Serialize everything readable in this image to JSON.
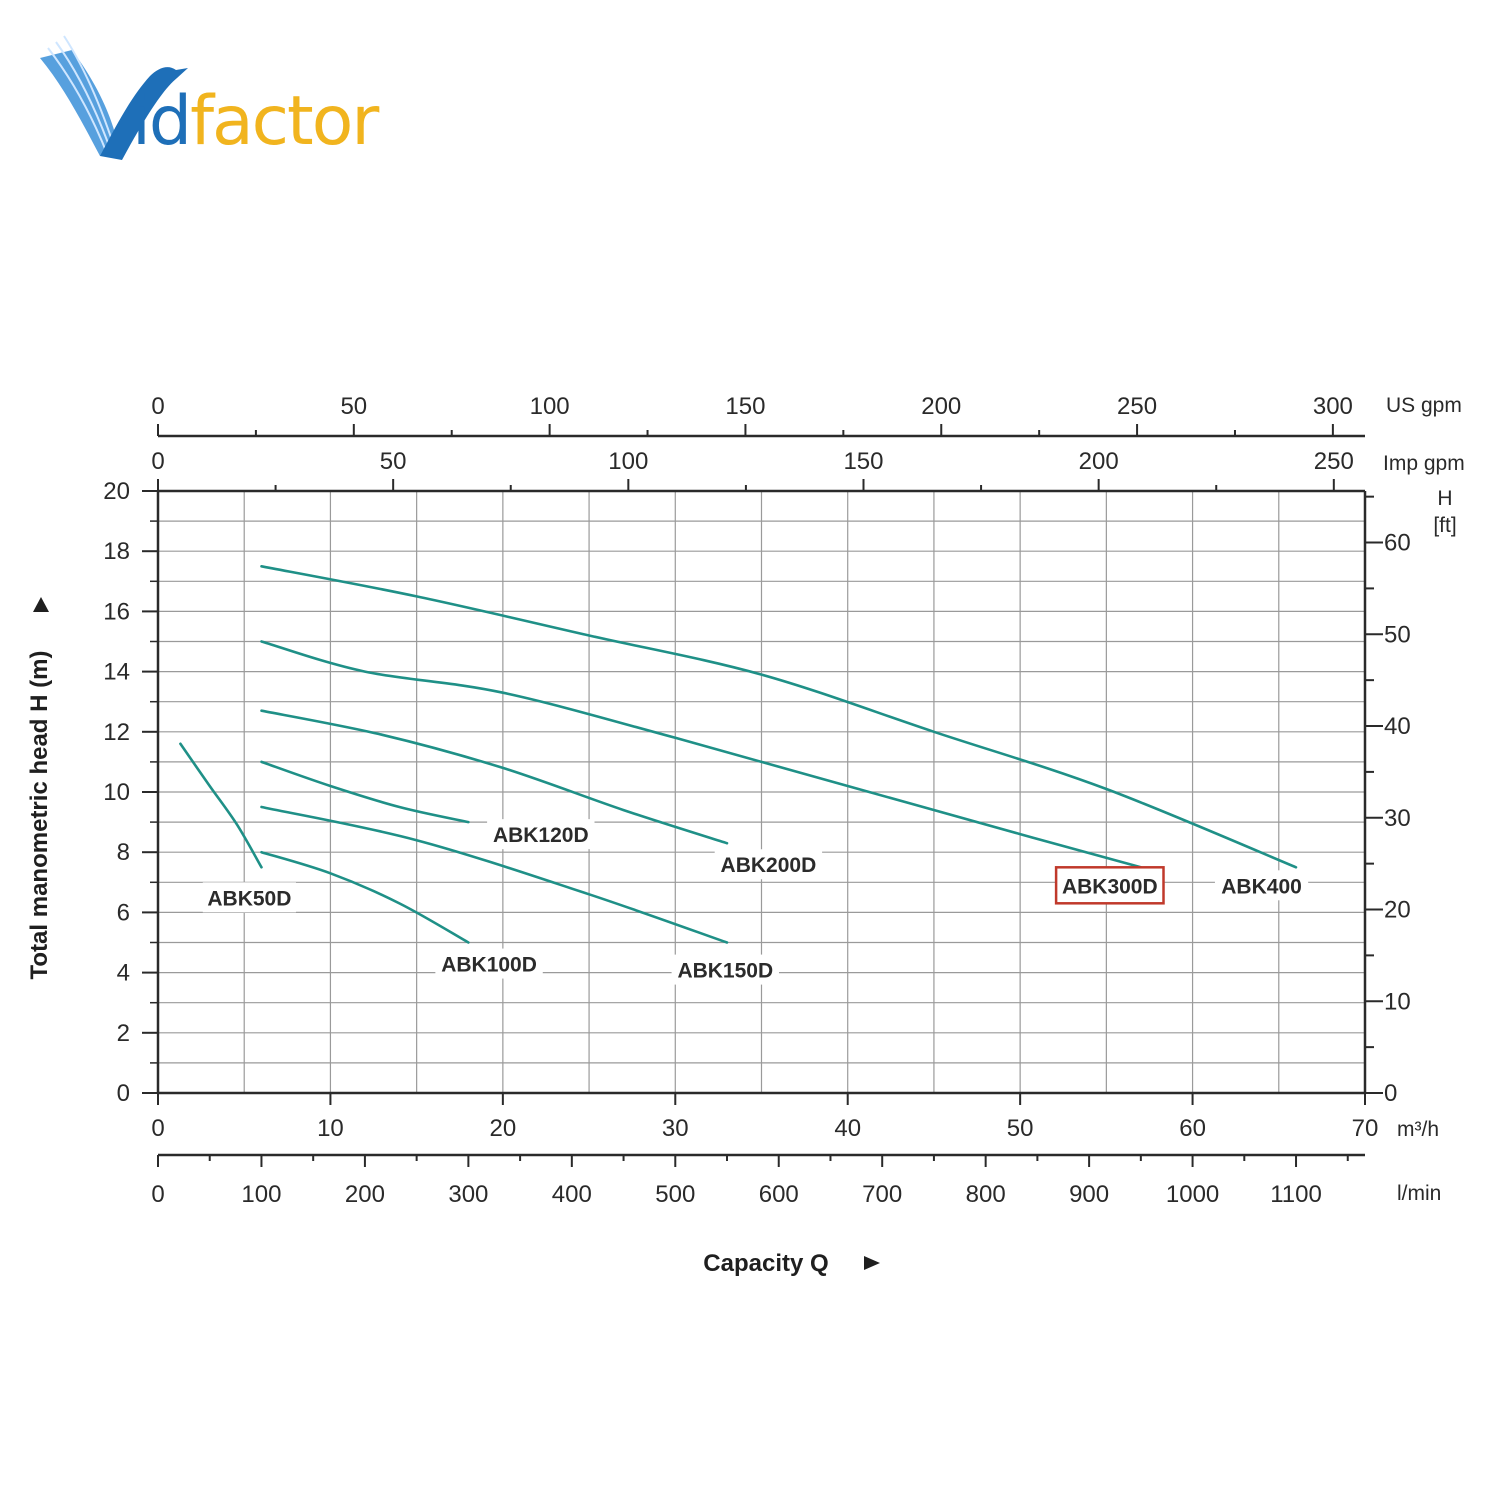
{
  "logo": {
    "text_left": "id",
    "text_right": "factor",
    "colors": {
      "blue": "#1e6fb8",
      "gold": "#f1b41e"
    }
  },
  "colors": {
    "curve": "#1f9087",
    "grid": "#9a9a9a",
    "axis": "#2a2a2a",
    "highlight": "#c0392b"
  },
  "chart_data": {
    "type": "line",
    "title": "",
    "xlabel": "Capacity Q",
    "ylabel": "Total manometric head H (m)",
    "xlim": [
      0,
      70
    ],
    "ylim": [
      0,
      20
    ],
    "grid": true,
    "x_ticks": [
      0,
      10,
      20,
      30,
      40,
      50,
      60,
      70
    ],
    "y_ticks": [
      0,
      2,
      4,
      6,
      8,
      10,
      12,
      14,
      16,
      18,
      20
    ],
    "x_unit": "m³/h",
    "axes": {
      "top_usgpm": {
        "unit": "US gpm",
        "ticks": [
          0,
          50,
          100,
          150,
          200,
          250,
          300
        ]
      },
      "top_impgpm": {
        "unit": "Imp gpm",
        "ticks": [
          0,
          50,
          100,
          150,
          200,
          250
        ]
      },
      "bottom_lmin": {
        "unit": "l/min",
        "ticks": [
          0,
          100,
          200,
          300,
          400,
          500,
          600,
          700,
          800,
          900,
          1000,
          1100
        ]
      },
      "right_ft": {
        "unit_line1": "H",
        "unit_line2": "[ft]",
        "ticks": [
          0,
          10,
          20,
          30,
          40,
          50,
          60
        ]
      }
    },
    "series": [
      {
        "name": "ABK50D",
        "x": [
          1.3,
          3,
          4.6,
          6
        ],
        "y": [
          11.6,
          10.2,
          8.9,
          7.5
        ]
      },
      {
        "name": "ABK100D",
        "x": [
          6,
          10,
          14,
          18
        ],
        "y": [
          8.0,
          7.3,
          6.3,
          5.0
        ]
      },
      {
        "name": "ABK120D",
        "x": [
          6,
          10,
          14,
          18
        ],
        "y": [
          11.0,
          10.2,
          9.5,
          9.0
        ]
      },
      {
        "name": "ABK150D",
        "x": [
          6,
          15,
          25,
          33
        ],
        "y": [
          9.5,
          8.4,
          6.6,
          5.0
        ]
      },
      {
        "name": "ABK200D",
        "x": [
          6,
          13,
          20,
          27,
          33
        ],
        "y": [
          12.7,
          11.9,
          10.8,
          9.4,
          8.3
        ]
      },
      {
        "name": "ABK300D",
        "x": [
          6,
          12,
          20,
          30,
          40,
          50,
          57
        ],
        "y": [
          15.0,
          14.0,
          13.3,
          11.8,
          10.2,
          8.6,
          7.5
        ]
      },
      {
        "name": "ABK400",
        "x": [
          6,
          15,
          25,
          35,
          45,
          55,
          66
        ],
        "y": [
          17.5,
          16.5,
          15.2,
          13.9,
          12.0,
          10.1,
          7.5
        ]
      }
    ],
    "annotations": [
      {
        "series": "ABK50D",
        "text": "ABK50D",
        "at": [
          5.3,
          6.5
        ]
      },
      {
        "series": "ABK100D",
        "text": "ABK100D",
        "at": [
          19.2,
          4.3
        ]
      },
      {
        "series": "ABK120D",
        "text": "ABK120D",
        "at": [
          22.2,
          8.6
        ]
      },
      {
        "series": "ABK150D",
        "text": "ABK150D",
        "at": [
          32.9,
          4.1
        ]
      },
      {
        "series": "ABK200D",
        "text": "ABK200D",
        "at": [
          35.4,
          7.6
        ]
      },
      {
        "series": "ABK300D",
        "text": "ABK300D",
        "at": [
          55.2,
          6.9
        ],
        "highlight": true
      },
      {
        "series": "ABK400",
        "text": "ABK400",
        "at": [
          64.0,
          6.9
        ]
      }
    ]
  }
}
